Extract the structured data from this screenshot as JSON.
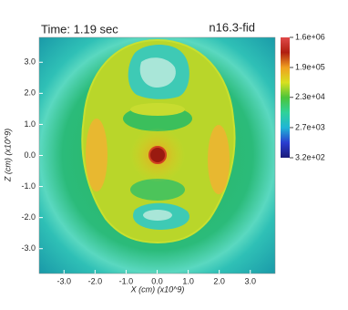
{
  "chart_data": {
    "type": "heatmap",
    "title": "n16.3-fid",
    "subtitle": "Time: 1.19 sec",
    "xlabel": "X (cm) (x10^9)",
    "ylabel": "Z (cm) (x10^9)",
    "xlim": [
      -3.8,
      3.8
    ],
    "ylim": [
      -3.8,
      3.8
    ],
    "xticks": [
      {
        "value": -3,
        "label": "-3.0"
      },
      {
        "value": -2,
        "label": "-2.0"
      },
      {
        "value": -1,
        "label": "-1.0"
      },
      {
        "value": 0,
        "label": "0.0"
      },
      {
        "value": 1,
        "label": "1.0"
      },
      {
        "value": 2,
        "label": "2.0"
      },
      {
        "value": 3,
        "label": "3.0"
      }
    ],
    "yticks": [
      {
        "value": -3,
        "label": "-3.0"
      },
      {
        "value": -2,
        "label": "-2.0"
      },
      {
        "value": -1,
        "label": "-1.0"
      },
      {
        "value": 0,
        "label": "0.0"
      },
      {
        "value": 1,
        "label": "1.0"
      },
      {
        "value": 2,
        "label": "2.0"
      },
      {
        "value": 3,
        "label": "3.0"
      }
    ],
    "colorbar": {
      "lim": [
        320,
        1600000
      ],
      "log": true,
      "ticks": [
        {
          "value": 1600000,
          "label": "1.6e+06"
        },
        {
          "value": 190000,
          "label": "1.9e+05"
        },
        {
          "value": 23000,
          "label": "2.3e+04"
        },
        {
          "value": 2700,
          "label": "2.7e+03"
        },
        {
          "value": 320,
          "label": "3.2e+02"
        }
      ],
      "colors": [
        "#1a1a7a",
        "#2a3dd0",
        "#1fb5d6",
        "#2fd29a",
        "#4cc43a",
        "#d8e020",
        "#f0a020",
        "#b01e10",
        "#e04a4a"
      ]
    }
  }
}
